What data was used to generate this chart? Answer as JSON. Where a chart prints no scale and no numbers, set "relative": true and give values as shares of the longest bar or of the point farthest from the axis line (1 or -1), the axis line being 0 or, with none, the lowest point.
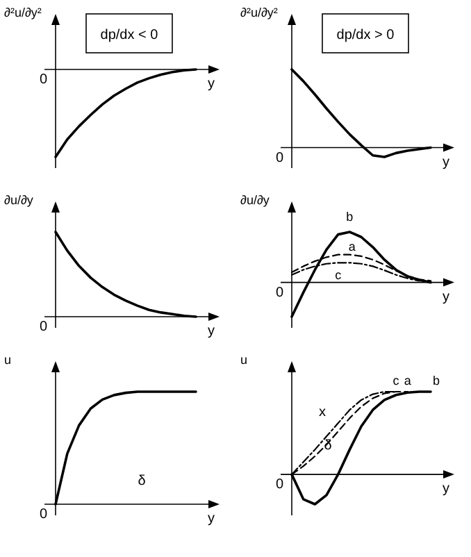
{
  "chart_data": [
    {
      "type": "line",
      "relative": true,
      "title": "dp/dx < 0",
      "xlabel": "y",
      "ylabel": "∂²u/∂y²",
      "annotations": [
        "0"
      ],
      "categories": [
        null,
        null,
        null,
        null,
        null,
        null,
        null,
        null,
        null,
        null,
        null,
        null,
        null
      ],
      "series": [
        {
          "color": "#000000",
          "line_style": "solid",
          "values": [
            -1,
            -0.8,
            -0.65,
            -0.52,
            -0.4,
            -0.3,
            -0.22,
            -0.15,
            -0.1,
            -0.06,
            -0.03,
            -0.01,
            0
          ]
        }
      ]
    },
    {
      "type": "line",
      "relative": true,
      "title": "dp/dx > 0",
      "xlabel": "y",
      "ylabel": "∂²u/∂y²",
      "annotations": [
        "0"
      ],
      "categories": [
        null,
        null,
        null,
        null,
        null,
        null,
        null,
        null,
        null,
        null,
        null,
        null,
        null
      ],
      "series": [
        {
          "color": "#000000",
          "line_style": "solid",
          "values": [
            1,
            0.85,
            0.68,
            0.5,
            0.33,
            0.17,
            0.03,
            -0.1,
            -0.12,
            -0.07,
            -0.04,
            -0.02,
            0
          ]
        }
      ]
    },
    {
      "type": "line",
      "relative": true,
      "xlabel": "y",
      "ylabel": "∂u/∂y",
      "annotations": [
        "0"
      ],
      "categories": [
        null,
        null,
        null,
        null,
        null,
        null,
        null,
        null,
        null,
        null,
        null,
        null,
        null
      ],
      "series": [
        {
          "color": "#000000",
          "line_style": "solid",
          "values": [
            1,
            0.78,
            0.6,
            0.46,
            0.35,
            0.26,
            0.19,
            0.13,
            0.08,
            0.05,
            0.03,
            0.01,
            0
          ]
        }
      ]
    },
    {
      "type": "line",
      "relative": true,
      "xlabel": "y",
      "ylabel": "∂u/∂y",
      "annotations": [
        "0"
      ],
      "categories": [
        null,
        null,
        null,
        null,
        null,
        null,
        null,
        null,
        null,
        null,
        null,
        null,
        null
      ],
      "series": [
        {
          "name": "b",
          "color": "#000000",
          "line_style": "solid",
          "values": [
            -0.68,
            -0.2,
            0.25,
            0.65,
            0.95,
            1,
            0.9,
            0.7,
            0.45,
            0.25,
            0.12,
            0.05,
            0
          ]
        },
        {
          "name": "a",
          "color": "#000000",
          "line_style": "dashed",
          "values": [
            0.2,
            0.32,
            0.42,
            0.5,
            0.55,
            0.55,
            0.52,
            0.45,
            0.35,
            0.23,
            0.13,
            0.06,
            0.03
          ]
        },
        {
          "name": "c",
          "color": "#000000",
          "line_style": "dotted",
          "values": [
            0.15,
            0.25,
            0.32,
            0.37,
            0.39,
            0.39,
            0.37,
            0.32,
            0.24,
            0.15,
            0.08,
            0.03,
            null
          ]
        }
      ]
    },
    {
      "type": "line",
      "relative": true,
      "xlabel": "y",
      "ylabel": "u",
      "annotations": [
        "0",
        "δ"
      ],
      "categories": [
        null,
        null,
        null,
        null,
        null,
        null,
        null,
        null,
        null,
        null,
        null,
        null,
        null
      ],
      "series": [
        {
          "color": "#000000",
          "line_style": "solid",
          "values": [
            0,
            0.45,
            0.7,
            0.85,
            0.93,
            0.97,
            0.99,
            1,
            1,
            1,
            1,
            1,
            1
          ]
        }
      ]
    },
    {
      "type": "line",
      "relative": true,
      "xlabel": "y",
      "ylabel": "u",
      "annotations": [
        "0",
        "δ",
        "x"
      ],
      "categories": [
        null,
        null,
        null,
        null,
        null,
        null,
        null,
        null,
        null,
        null,
        null,
        null,
        null
      ],
      "series": [
        {
          "name": "b",
          "color": "#000000",
          "line_style": "solid",
          "values": [
            0,
            -0.3,
            -0.36,
            -0.25,
            0,
            0.3,
            0.58,
            0.78,
            0.9,
            0.96,
            0.99,
            1,
            1
          ]
        },
        {
          "name": "a",
          "color": "#000000",
          "line_style": "dashed",
          "values": [
            0,
            0.1,
            0.22,
            0.36,
            0.52,
            0.68,
            0.82,
            0.92,
            0.98,
            1,
            1,
            null,
            null
          ]
        },
        {
          "name": "c",
          "color": "#000000",
          "line_style": "dotted",
          "values": [
            0,
            0.15,
            0.3,
            0.46,
            0.62,
            0.78,
            0.9,
            0.97,
            1,
            1,
            null,
            null,
            null
          ]
        }
      ]
    }
  ]
}
